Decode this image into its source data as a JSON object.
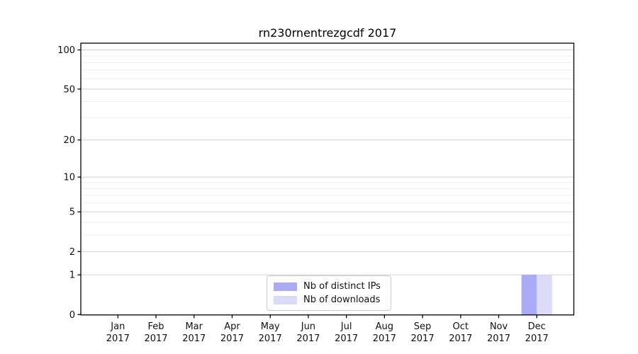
{
  "chart_data": {
    "type": "bar",
    "title": "rn230rnentrezgcdf 2017",
    "categories": [
      "Jan 2017",
      "Feb 2017",
      "Mar 2017",
      "Apr 2017",
      "May 2017",
      "Jun 2017",
      "Jul 2017",
      "Aug 2017",
      "Sep 2017",
      "Oct 2017",
      "Nov 2017",
      "Dec 2017"
    ],
    "x_tick_months": [
      "Jan",
      "Feb",
      "Mar",
      "Apr",
      "May",
      "Jun",
      "Jul",
      "Aug",
      "Sep",
      "Oct",
      "Nov",
      "Dec"
    ],
    "x_tick_year": "2017",
    "series": [
      {
        "name": "Nb of distinct IPs",
        "color": "#aaaaf5",
        "values": [
          0,
          0,
          0,
          0,
          0,
          0,
          0,
          0,
          0,
          0,
          0,
          1
        ]
      },
      {
        "name": "Nb of downloads",
        "color": "#dbdbf8",
        "values": [
          0,
          0,
          0,
          0,
          0,
          0,
          0,
          0,
          0,
          0,
          0,
          1
        ]
      }
    ],
    "yscale": "log1p",
    "y_axis": {
      "major_ticks": [
        0,
        1,
        2,
        5,
        10,
        20,
        50,
        100
      ],
      "minor_ticks": [
        3,
        4,
        6,
        7,
        8,
        9,
        30,
        40,
        60,
        70,
        80,
        90
      ],
      "range_top": 115
    },
    "legend": {
      "position": "lower center",
      "entries": [
        "Nb of distinct IPs",
        "Nb of downloads"
      ]
    },
    "grid": "on",
    "colors": {
      "grid_major": "#d2d2d2",
      "grid_minor": "#efefef",
      "axis": "#000000",
      "text": "#111111",
      "background": "#ffffff"
    }
  }
}
